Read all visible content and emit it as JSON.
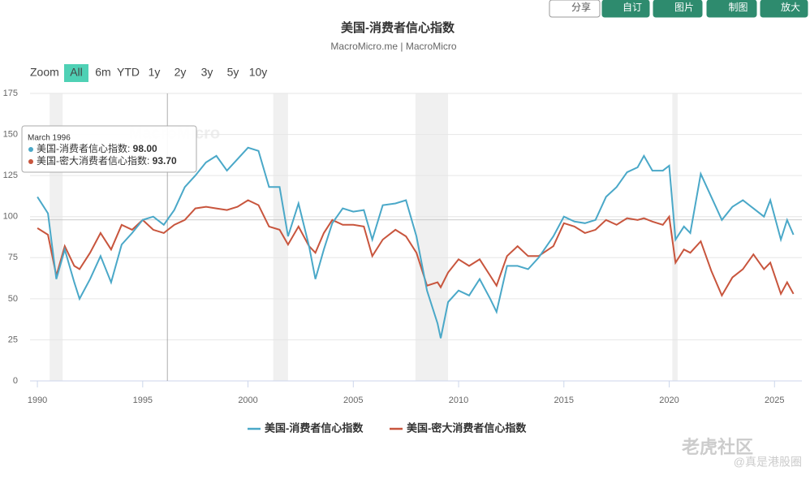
{
  "chart_data": {
    "type": "line",
    "title": "美国-消费者信心指数",
    "subtitle": "MacroMicro.me | MacroMicro",
    "toolbar": [
      "分享",
      "自订",
      "图片",
      "制图",
      "放大"
    ],
    "zoom_label": "Zoom",
    "zoom_options": [
      "All",
      "6m",
      "YTD",
      "1y",
      "2y",
      "3y",
      "5y",
      "10y"
    ],
    "watermark": "MacroMicro",
    "x": [
      1990.0,
      1990.5,
      1990.9,
      1991.3,
      1991.75,
      1992.0,
      1992.5,
      1993.0,
      1993.5,
      1994.0,
      1994.5,
      1995.0,
      1995.5,
      1996.0,
      1996.5,
      1997.0,
      1997.5,
      1998.0,
      1998.5,
      1999.0,
      1999.5,
      2000.0,
      2000.5,
      2001.0,
      2001.5,
      2001.9,
      2002.4,
      2002.9,
      2003.2,
      2003.6,
      2004.0,
      2004.5,
      2005.0,
      2005.5,
      2005.9,
      2006.4,
      2007.0,
      2007.5,
      2008.0,
      2008.5,
      2009.0,
      2009.15,
      2009.5,
      2010.0,
      2010.5,
      2011.0,
      2011.5,
      2011.8,
      2012.3,
      2012.8,
      2013.3,
      2013.8,
      2014.5,
      2015.0,
      2015.5,
      2016.0,
      2016.5,
      2017.0,
      2017.5,
      2018.0,
      2018.5,
      2018.8,
      2019.2,
      2019.7,
      2020.0,
      2020.3,
      2020.7,
      2021.0,
      2021.5,
      2022.0,
      2022.5,
      2023.0,
      2023.5,
      2024.0,
      2024.5,
      2024.8,
      2025.3,
      2025.6,
      2025.9
    ],
    "series": [
      {
        "name": "美国-消费者信心指数",
        "color": "#4aa8c8",
        "values": [
          112,
          102,
          62,
          80,
          60,
          50,
          62,
          76,
          60,
          83,
          90,
          98,
          100,
          95,
          104,
          118,
          125,
          133,
          137,
          128,
          135,
          142,
          140,
          118,
          118,
          88,
          108,
          82,
          62,
          80,
          96,
          105,
          103,
          104,
          86,
          107,
          108,
          110,
          88,
          55,
          35,
          26,
          48,
          55,
          52,
          62,
          50,
          42,
          70,
          70,
          68,
          75,
          88,
          100,
          97,
          96,
          98,
          112,
          118,
          127,
          130,
          137,
          128,
          128,
          131,
          86,
          94,
          90,
          126,
          112,
          98,
          106,
          110,
          105,
          100,
          110,
          86,
          98,
          89
        ]
      },
      {
        "name": "美国-密大消费者信心指数",
        "color": "#c8553d",
        "values": [
          93,
          89,
          64,
          82,
          70,
          68,
          78,
          90,
          80,
          95,
          92,
          98,
          92,
          90,
          95,
          98,
          105,
          106,
          105,
          104,
          106,
          110,
          107,
          94,
          92,
          83,
          94,
          82,
          78,
          90,
          98,
          95,
          95,
          94,
          76,
          86,
          92,
          88,
          78,
          58,
          60,
          57,
          66,
          74,
          70,
          74,
          64,
          58,
          76,
          82,
          76,
          76,
          82,
          96,
          94,
          90,
          92,
          98,
          95,
          99,
          98,
          99,
          97,
          95,
          100,
          72,
          80,
          78,
          85,
          67,
          52,
          63,
          68,
          77,
          68,
          72,
          53,
          60,
          53
        ]
      }
    ],
    "shaded_ranges": [
      [
        1990.58,
        1991.2
      ],
      [
        2001.2,
        2001.9
      ],
      [
        2007.95,
        2009.5
      ],
      [
        2020.15,
        2020.4
      ]
    ],
    "tooltip": {
      "title": "March 1996",
      "x": 1996.17,
      "items": [
        {
          "value": 98,
          "label": "98.00"
        },
        {
          "value": 93.7,
          "label": "93.70"
        }
      ]
    },
    "xlim": [
      1989.65,
      2026.3
    ],
    "xticks": [
      1990,
      1995,
      2000,
      2005,
      2010,
      2015,
      2020,
      2025
    ],
    "ylim": [
      0,
      175
    ],
    "yticks": [
      0,
      25,
      50,
      75,
      100,
      125,
      150,
      175
    ],
    "grid": true,
    "legend": "bottom"
  },
  "overlay": {
    "brand": "老虎社区",
    "handle": "@真是港股圈"
  }
}
